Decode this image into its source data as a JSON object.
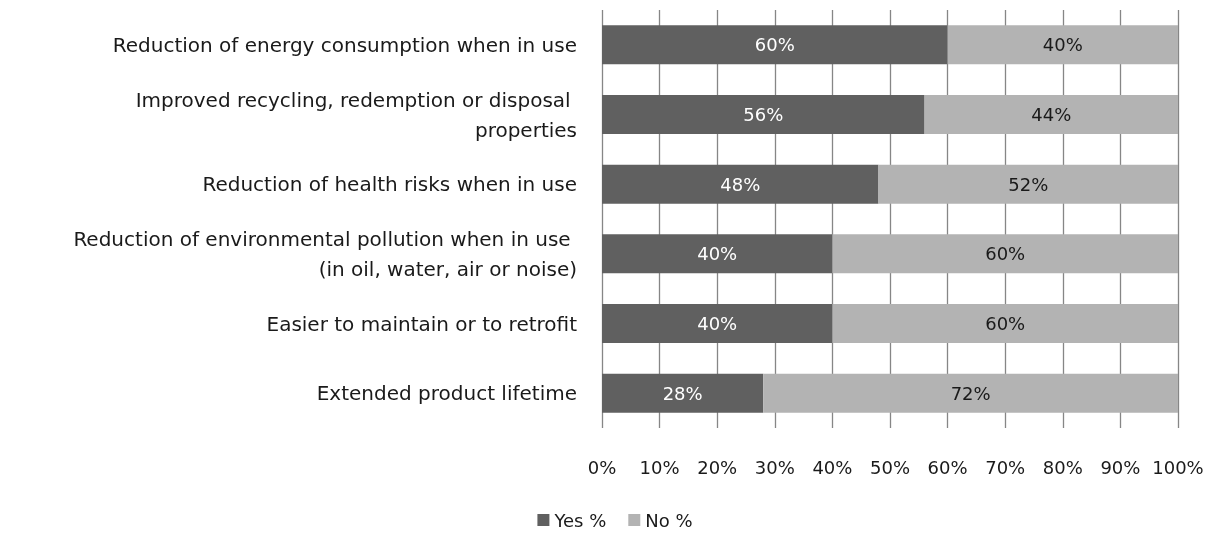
{
  "chart_data": {
    "type": "bar",
    "orientation": "horizontal",
    "stacked": true,
    "categories": [
      "Reduction of energy consumption when in use",
      "Improved recycling, redemption or disposal properties",
      "Reduction of health risks when in use",
      "Reduction of environmental pollution when in use (in oil, water, air or noise)",
      "Easier to maintain or to retrofit",
      "Extended product lifetime"
    ],
    "series": [
      {
        "name": "Yes %",
        "color": "#606060",
        "values": [
          60,
          56,
          48,
          40,
          40,
          28
        ],
        "value_labels": [
          "60%",
          "56%",
          "48%",
          "40%",
          "40%",
          "28%"
        ]
      },
      {
        "name": "No %",
        "color": "#b3b3b3",
        "values": [
          40,
          44,
          52,
          60,
          60,
          72
        ],
        "value_labels": [
          "40%",
          "44%",
          "52%",
          "60%",
          "60%",
          "72%"
        ]
      }
    ],
    "xlim": [
      0,
      100
    ],
    "xticks": [
      {
        "value": 0,
        "label": "0%"
      },
      {
        "value": 10,
        "label": "10%"
      },
      {
        "value": 20,
        "label": "20%"
      },
      {
        "value": 30,
        "label": "30%"
      },
      {
        "value": 40,
        "label": "40%"
      },
      {
        "value": 50,
        "label": "50%"
      },
      {
        "value": 60,
        "label": "60%"
      },
      {
        "value": 70,
        "label": "70%"
      },
      {
        "value": 80,
        "label": "80%"
      },
      {
        "value": 90,
        "label": "90%"
      },
      {
        "value": 100,
        "label": "100%"
      }
    ],
    "grid": "x",
    "legend": "bottom"
  }
}
